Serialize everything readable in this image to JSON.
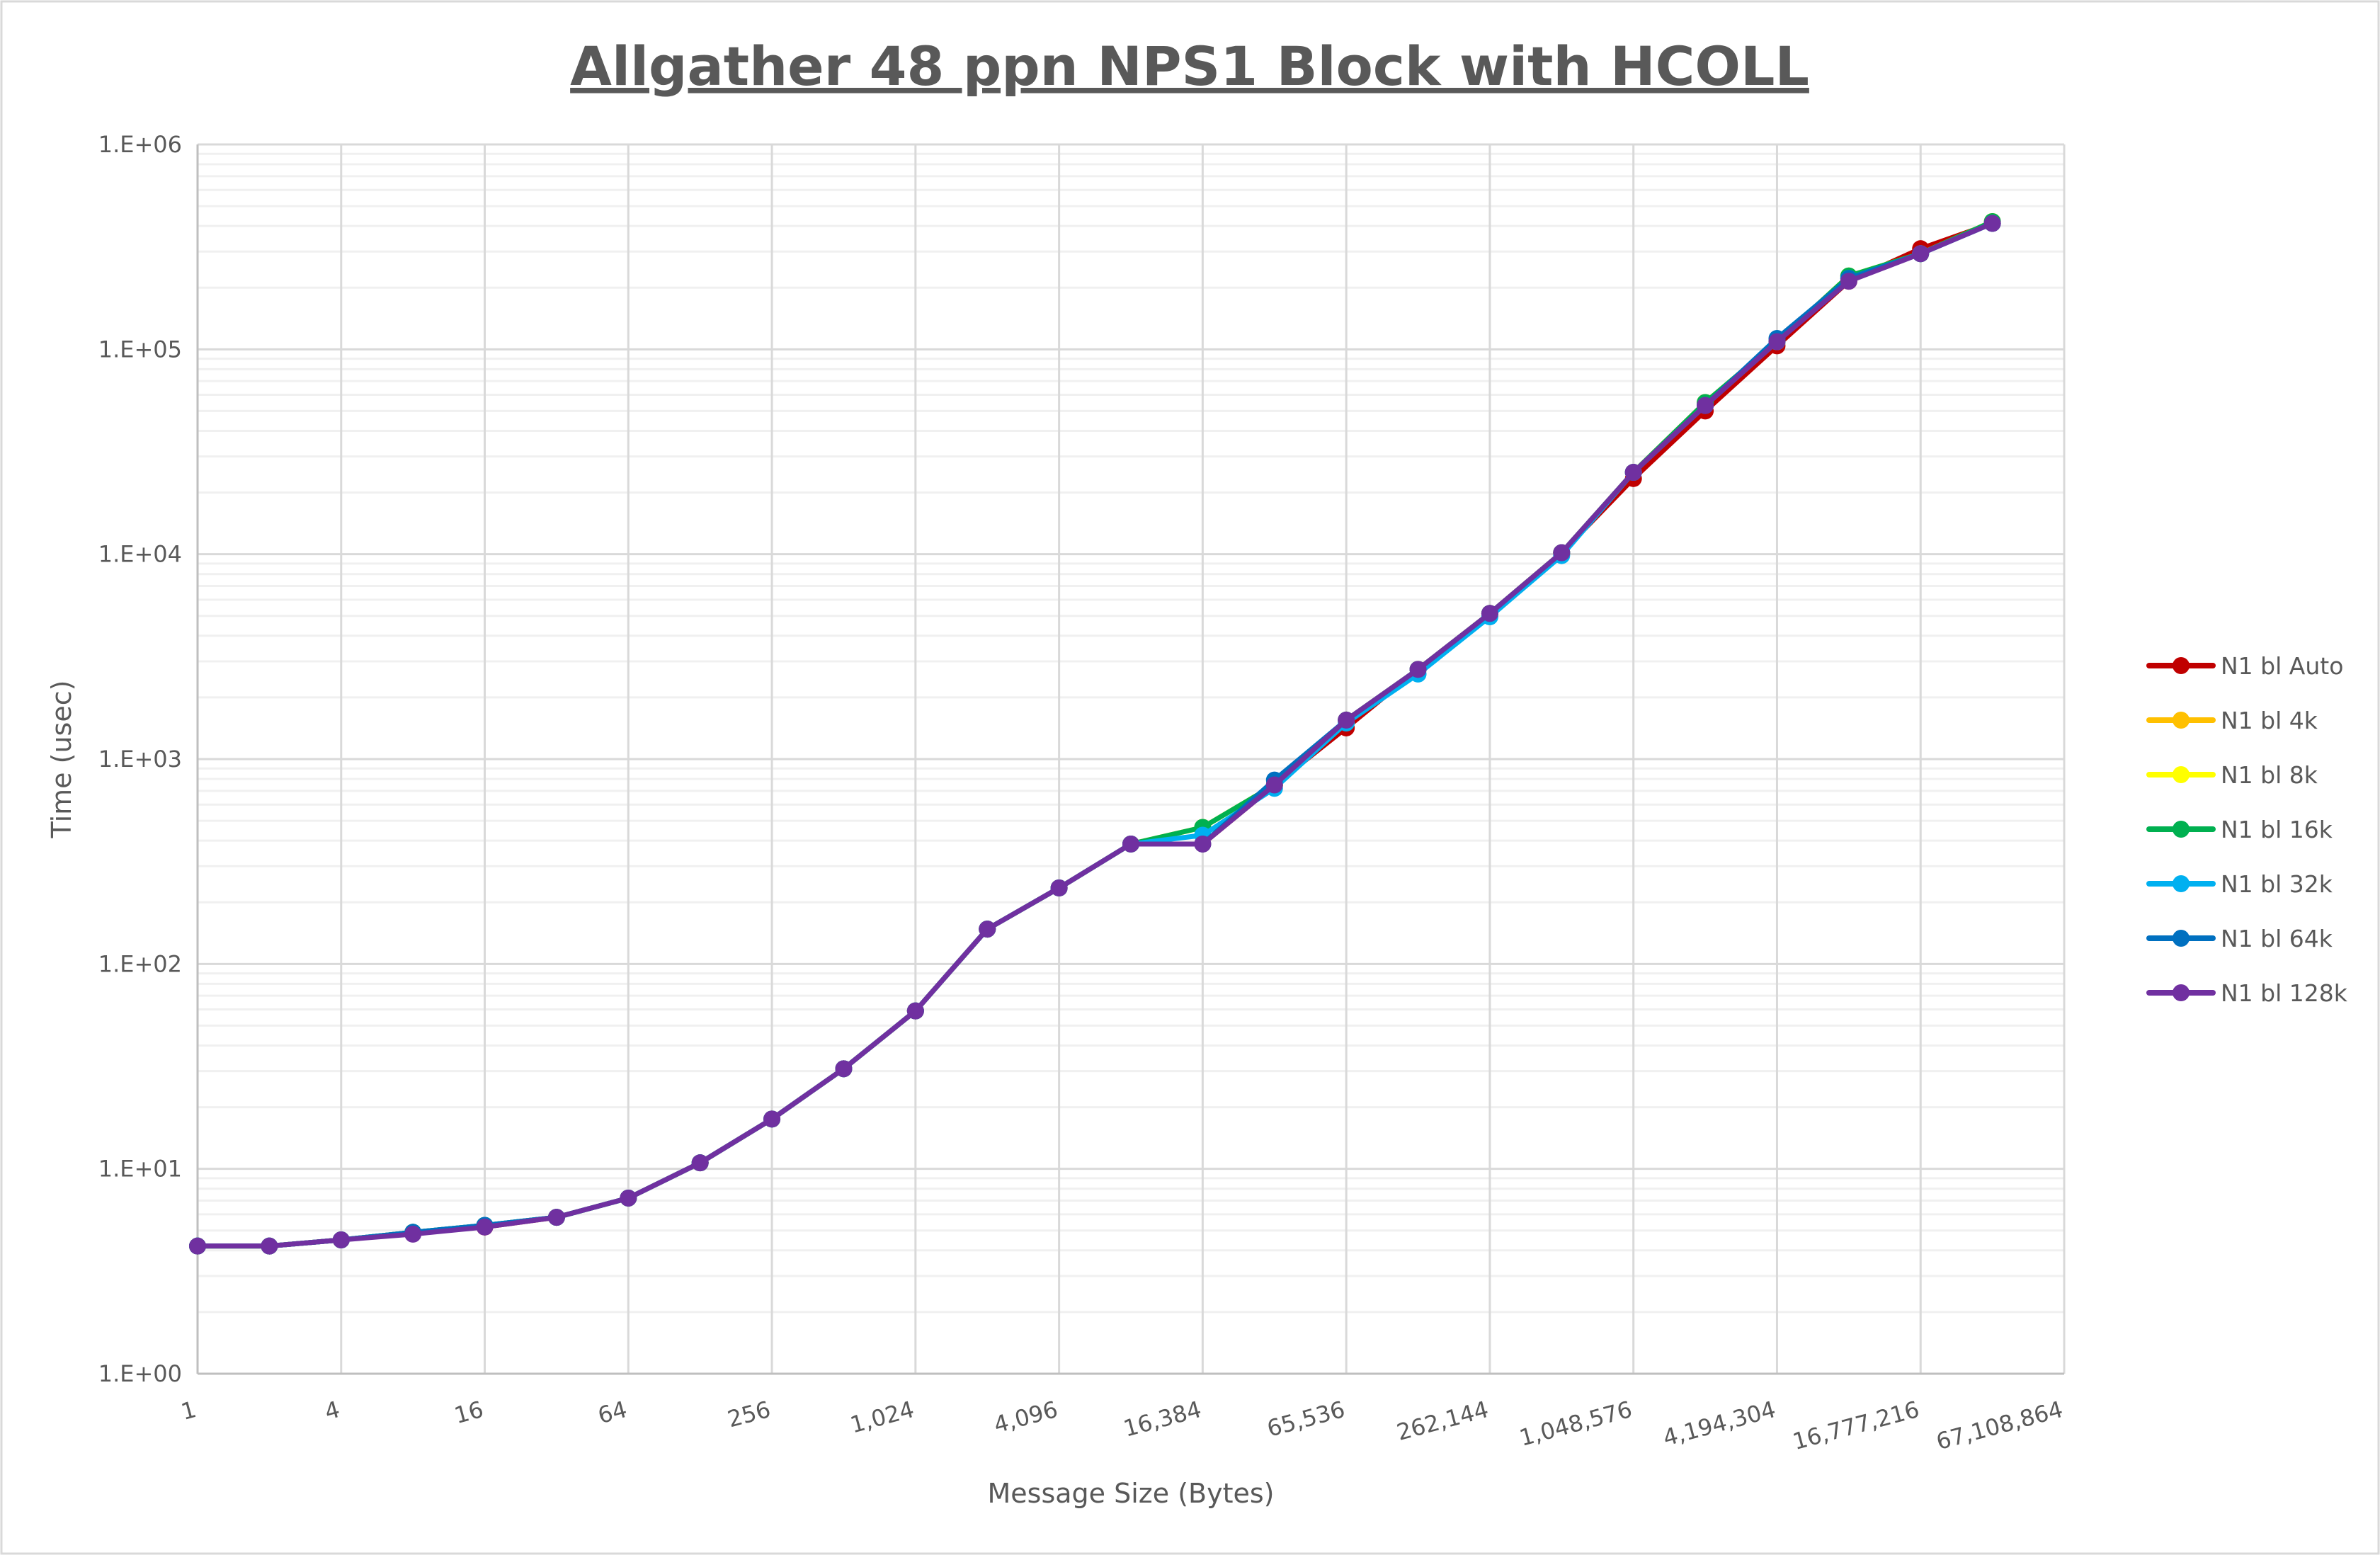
{
  "chart_data": {
    "type": "line",
    "title": "Allgather 48 ppn NPS1 Block with HCOLL",
    "xlabel": "Message Size (Bytes)",
    "ylabel": "Time (usec)",
    "x_scale": "log2",
    "y_scale": "log10",
    "xlim": [
      1,
      67108864
    ],
    "ylim": [
      1,
      1000000
    ],
    "grid": true,
    "legend_position": "right",
    "x_tick_labels": [
      "1",
      "4",
      "16",
      "64",
      "256",
      "1,024",
      "4,096",
      "16,384",
      "65,536",
      "262,144",
      "1,048,576",
      "4,194,304",
      "16,777,216",
      "67,108,864"
    ],
    "y_tick_labels": [
      "1.E+00",
      "1.E+01",
      "1.E+02",
      "1.E+03",
      "1.E+04",
      "1.E+05",
      "1.E+06"
    ],
    "x": [
      1,
      2,
      4,
      8,
      16,
      32,
      64,
      128,
      256,
      512,
      1024,
      2048,
      4096,
      8192,
      16384,
      32768,
      65536,
      131072,
      262144,
      524288,
      1048576,
      2097152,
      4194304,
      8388608,
      16777216,
      33554432
    ],
    "series": [
      {
        "name": "N1 bl Auto",
        "color": "#c00000",
        "values": [
          4.2,
          4.2,
          4.5,
          4.9,
          5.2,
          5.8,
          7.2,
          10.7,
          17.5,
          30.8,
          59,
          148,
          235,
          385,
          385,
          748,
          1420,
          2740,
          5140,
          10170,
          23400,
          50000,
          104000,
          215000,
          310000,
          412000
        ]
      },
      {
        "name": "N1 bl 4k",
        "color": "#ffc000",
        "values": [
          4.2,
          4.2,
          4.5,
          4.9,
          5.3,
          5.8,
          7.2,
          10.7,
          17.5,
          30.8,
          59,
          148,
          235,
          385,
          464,
          748,
          1550,
          2740,
          5140,
          10170,
          25100,
          55000,
          109000,
          228000,
          293000,
          420000
        ]
      },
      {
        "name": "N1 bl 8k",
        "color": "#ffff00",
        "values": [
          4.2,
          4.2,
          4.5,
          4.9,
          5.3,
          5.8,
          7.2,
          10.7,
          17.5,
          30.8,
          59,
          148,
          235,
          385,
          464,
          748,
          1550,
          2740,
          5140,
          10170,
          25100,
          55000,
          109000,
          228000,
          293000,
          420000
        ]
      },
      {
        "name": "N1 bl 16k",
        "color": "#00b050",
        "values": [
          4.2,
          4.2,
          4.5,
          4.9,
          5.3,
          5.8,
          7.2,
          10.7,
          17.5,
          30.8,
          59,
          148,
          235,
          385,
          464,
          748,
          1550,
          2740,
          5140,
          10170,
          25100,
          55000,
          109000,
          228000,
          293000,
          420000
        ]
      },
      {
        "name": "N1 bl 32k",
        "color": "#00b0f0",
        "values": [
          4.2,
          4.2,
          4.5,
          4.9,
          5.3,
          5.8,
          7.2,
          10.7,
          17.5,
          30.8,
          59,
          148,
          235,
          385,
          425,
          720,
          1500,
          2600,
          4950,
          9850,
          25100,
          53200,
          109000,
          222000,
          293000,
          412000
        ]
      },
      {
        "name": "N1 bl 64k",
        "color": "#0070c0",
        "values": [
          4.2,
          4.2,
          4.5,
          4.9,
          5.3,
          5.8,
          7.2,
          10.7,
          17.5,
          30.8,
          59,
          148,
          235,
          385,
          385,
          790,
          1550,
          2740,
          5140,
          10170,
          25100,
          53200,
          113000,
          222000,
          293000,
          412000
        ]
      },
      {
        "name": "N1 bl 128k",
        "color": "#7030a0",
        "values": [
          4.2,
          4.2,
          4.5,
          4.8,
          5.2,
          5.8,
          7.2,
          10.7,
          17.5,
          30.8,
          59,
          148,
          235,
          385,
          385,
          748,
          1550,
          2740,
          5140,
          10170,
          25100,
          53200,
          109000,
          215000,
          293000,
          412000
        ]
      }
    ]
  }
}
